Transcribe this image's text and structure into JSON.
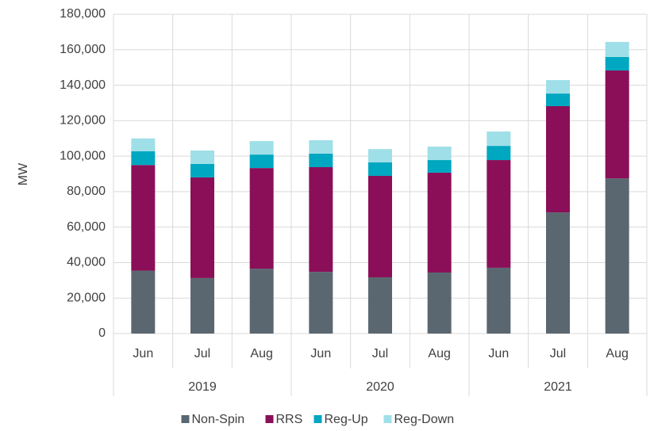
{
  "chart_data": {
    "type": "stacked_bar",
    "y_label": "MW",
    "categories": [
      "Jun",
      "Jul",
      "Aug",
      "Jun",
      "Jul",
      "Aug",
      "Jun",
      "Jul",
      "Aug"
    ],
    "groups": [
      "2019",
      "2020",
      "2021"
    ],
    "series": [
      {
        "name": "Non-Spin",
        "color": "#5b6770",
        "values": [
          35500,
          31300,
          36600,
          34800,
          31700,
          34400,
          37100,
          68300,
          87500
        ]
      },
      {
        "name": "RRS",
        "color": "#8b0f58",
        "values": [
          59500,
          56700,
          56700,
          59000,
          57200,
          56300,
          60700,
          59900,
          60800
        ]
      },
      {
        "name": "Reg-Up",
        "color": "#00a7c0",
        "values": [
          7800,
          7600,
          7600,
          7600,
          7600,
          7100,
          8000,
          7100,
          7600
        ]
      },
      {
        "name": "Reg-Down",
        "color": "#9fdfe8",
        "values": [
          7200,
          7600,
          7600,
          7600,
          7500,
          7600,
          8100,
          7600,
          8500
        ]
      }
    ],
    "ylim": [
      0,
      180000
    ],
    "yticks": [
      0,
      {
        "value": 20000,
        "label": "20,000"
      },
      {
        "value": 40000,
        "label": "40,000"
      },
      {
        "value": 60000,
        "label": "60,000"
      },
      {
        "value": 80000,
        "label": "80,000"
      },
      {
        "value": 100000,
        "label": "100,000"
      },
      {
        "value": 120000,
        "label": "120,000"
      },
      {
        "value": 140000,
        "label": "140,000"
      },
      {
        "value": 160000,
        "label": "160,000"
      },
      {
        "value": 180000,
        "label": "180,000"
      }
    ],
    "grid": true,
    "legend": "bottom"
  }
}
